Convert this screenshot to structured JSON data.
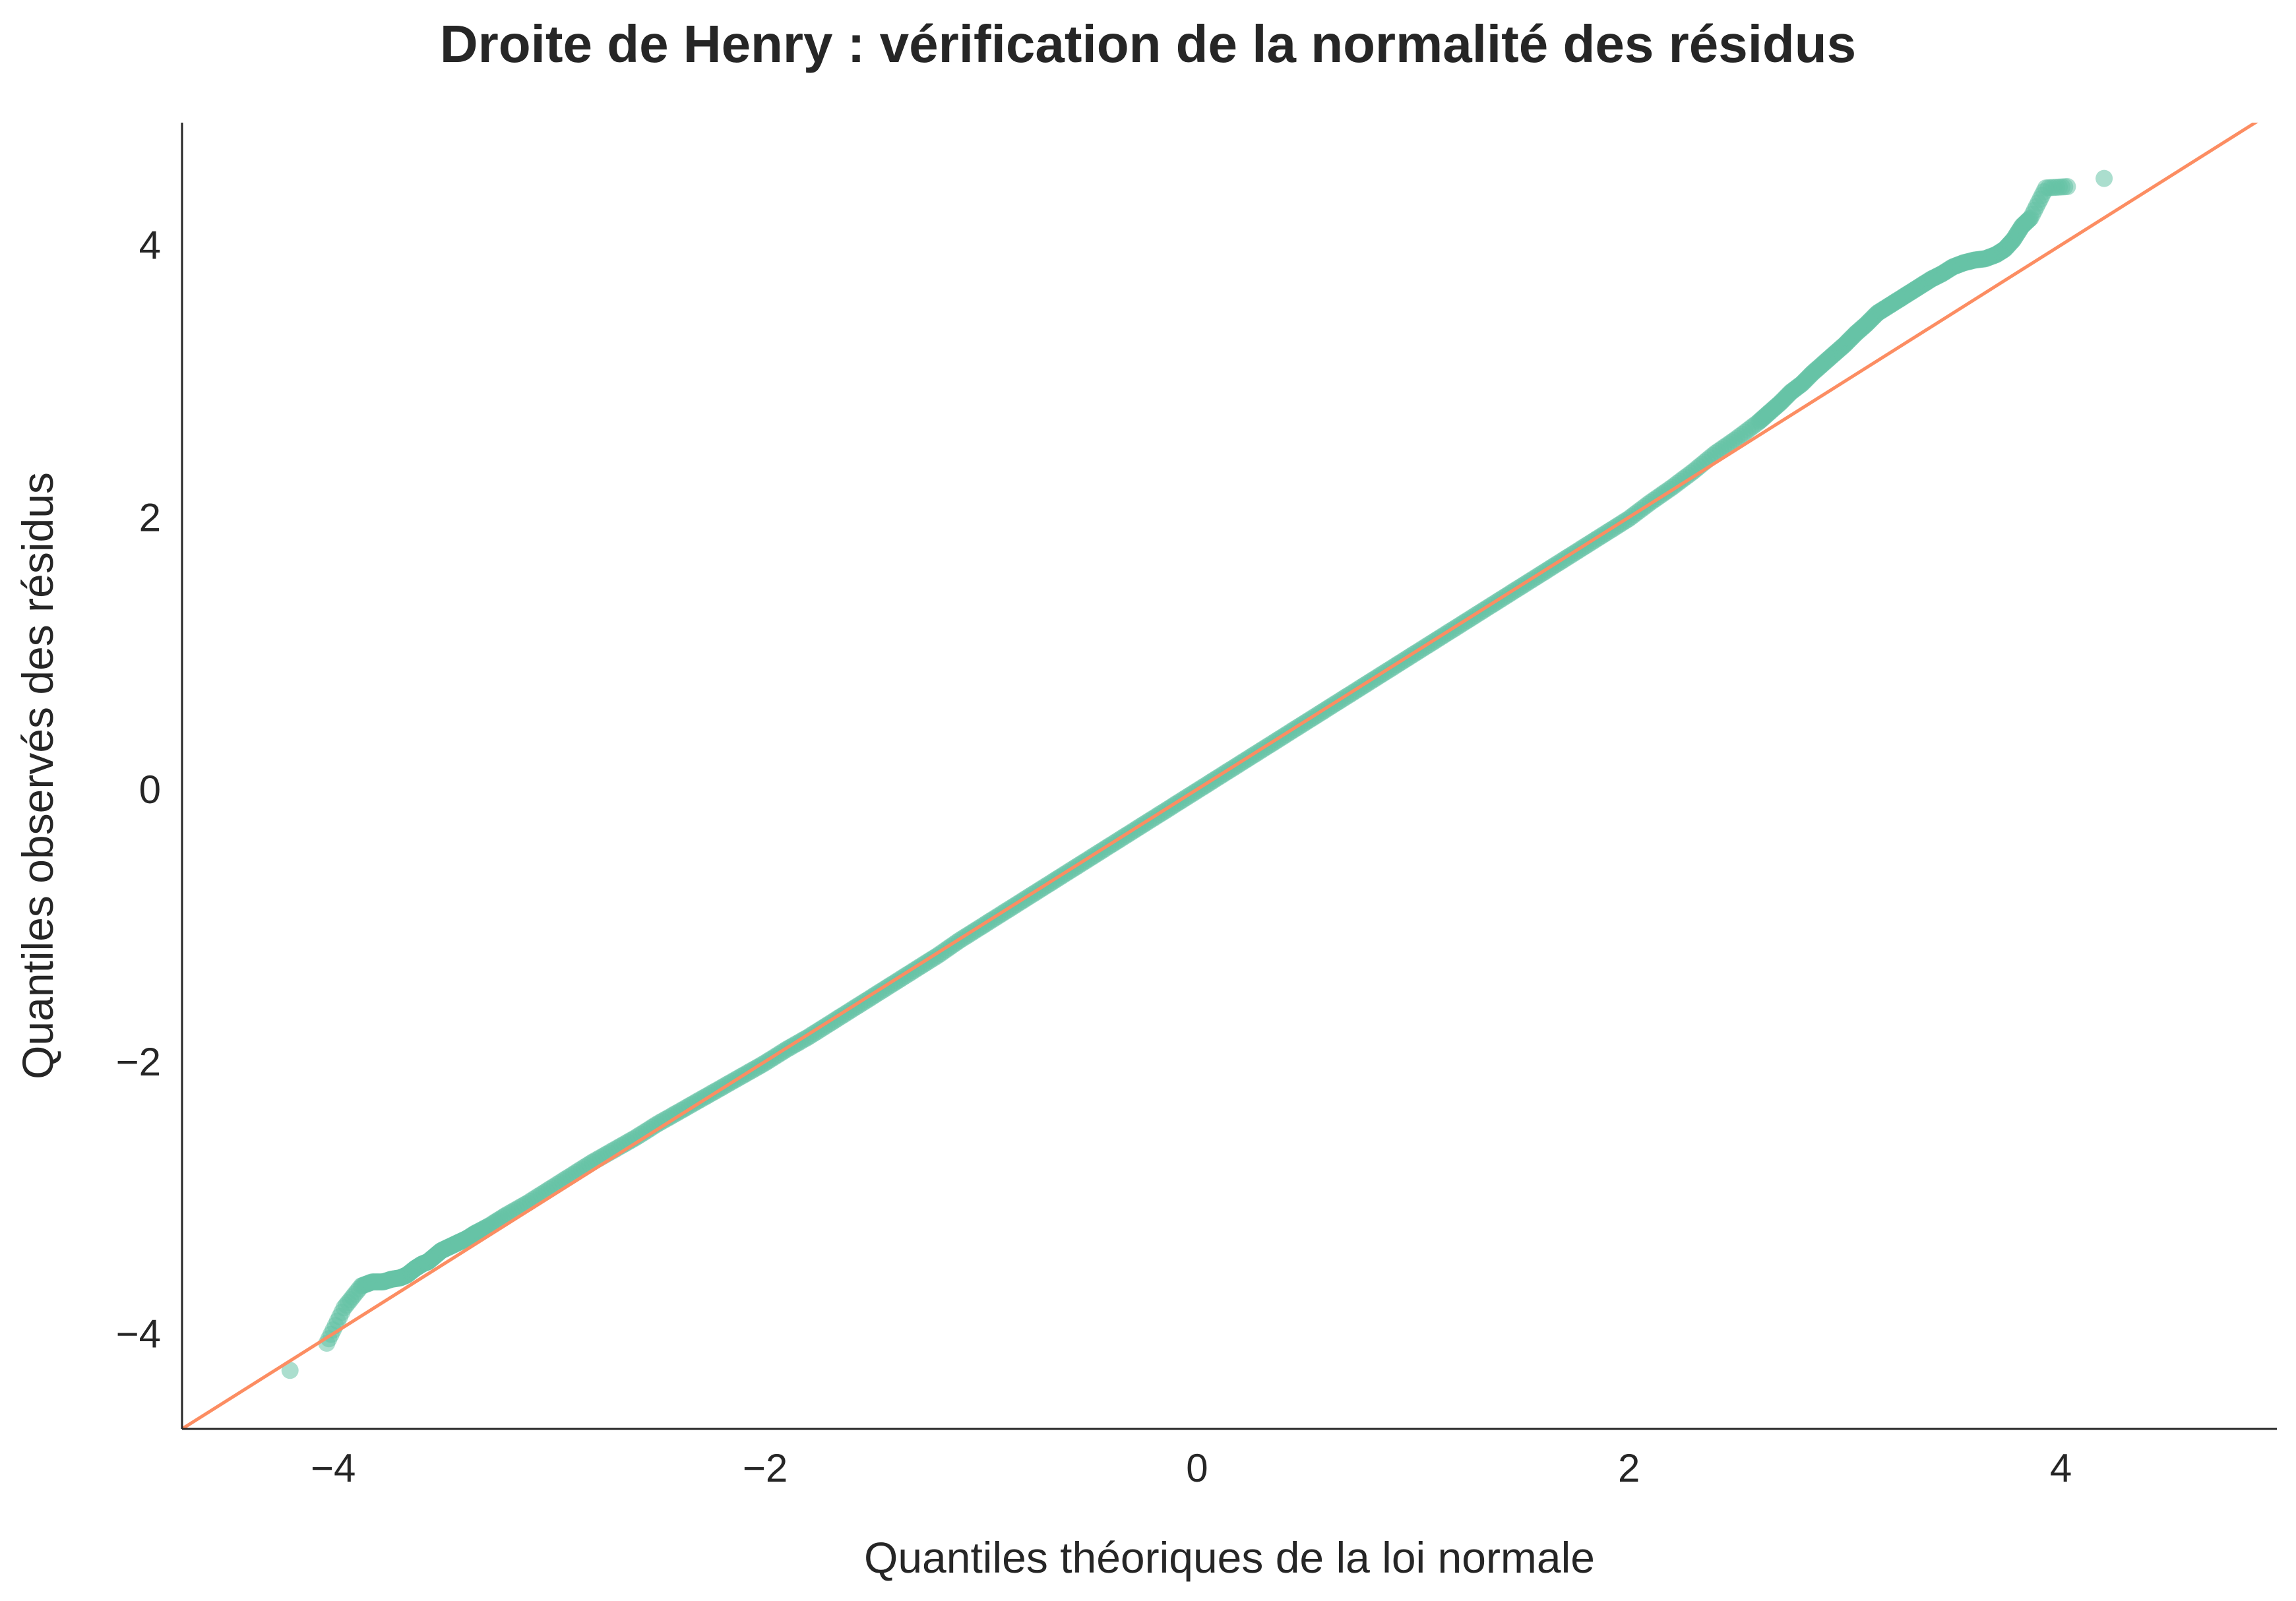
{
  "chart_data": {
    "type": "scatter",
    "title": "Droite de Henry : vérification de la normalité des résidus",
    "xlabel": "Quantiles théoriques de la loi normale",
    "ylabel": "Quantiles observés des résidus",
    "xlim": [
      -4.7,
      5.0
    ],
    "ylim": [
      -4.7,
      4.9
    ],
    "xticks": [
      -4,
      -2,
      0,
      2,
      4
    ],
    "yticks": [
      -4,
      -2,
      0,
      2,
      4
    ],
    "xtick_labels": [
      "−4",
      "−2",
      "0",
      "2",
      "4"
    ],
    "ytick_labels": [
      "−4",
      "−2",
      "0",
      "2",
      "4"
    ],
    "grid": false,
    "series": [
      {
        "kind": "points",
        "color": "#66c2a5",
        "opacity": 0.55,
        "points": [
          [
            -4.2,
            -4.27
          ],
          [
            -4.03,
            -4.07
          ],
          [
            -3.95,
            -3.81
          ],
          [
            -3.87,
            -3.65
          ],
          [
            -3.82,
            -3.62
          ],
          [
            -3.77,
            -3.62
          ],
          [
            -3.73,
            -3.6
          ],
          [
            -3.69,
            -3.59
          ],
          [
            -3.66,
            -3.57
          ],
          [
            -3.62,
            -3.52
          ],
          [
            -3.59,
            -3.49
          ],
          [
            -3.56,
            -3.47
          ],
          [
            -3.53,
            -3.43
          ],
          [
            -3.5,
            -3.39
          ],
          [
            -3.46,
            -3.36
          ],
          [
            -3.42,
            -3.33
          ],
          [
            -3.38,
            -3.3
          ],
          [
            -3.34,
            -3.26
          ],
          [
            -3.28,
            -3.21
          ],
          [
            -3.2,
            -3.13
          ],
          [
            -3.1,
            -3.04
          ],
          [
            -3.0,
            -2.94
          ],
          [
            -2.9,
            -2.84
          ],
          [
            -2.8,
            -2.74
          ],
          [
            -2.7,
            -2.65
          ],
          [
            -2.6,
            -2.56
          ],
          [
            -2.5,
            -2.46
          ],
          [
            -2.4,
            -2.37
          ],
          [
            -2.3,
            -2.28
          ],
          [
            -2.2,
            -2.19
          ],
          [
            -2.1,
            -2.1
          ],
          [
            -2.0,
            -2.01
          ],
          [
            -1.9,
            -1.91
          ],
          [
            -1.8,
            -1.82
          ],
          [
            -1.7,
            -1.72
          ],
          [
            -1.6,
            -1.62
          ],
          [
            -1.5,
            -1.52
          ],
          [
            -1.4,
            -1.42
          ],
          [
            -1.3,
            -1.32
          ],
          [
            -1.2,
            -1.22
          ],
          [
            -1.1,
            -1.11
          ],
          [
            -1.0,
            -1.01
          ],
          [
            -0.9,
            -0.91
          ],
          [
            -0.8,
            -0.81
          ],
          [
            -0.7,
            -0.71
          ],
          [
            -0.6,
            -0.61
          ],
          [
            -0.5,
            -0.51
          ],
          [
            -0.4,
            -0.41
          ],
          [
            -0.3,
            -0.31
          ],
          [
            -0.2,
            -0.21
          ],
          [
            -0.1,
            -0.11
          ],
          [
            0.0,
            -0.01
          ],
          [
            0.1,
            0.09
          ],
          [
            0.2,
            0.19
          ],
          [
            0.3,
            0.29
          ],
          [
            0.4,
            0.39
          ],
          [
            0.5,
            0.49
          ],
          [
            0.6,
            0.59
          ],
          [
            0.7,
            0.69
          ],
          [
            0.8,
            0.79
          ],
          [
            0.9,
            0.89
          ],
          [
            1.0,
            0.99
          ],
          [
            1.1,
            1.09
          ],
          [
            1.2,
            1.19
          ],
          [
            1.3,
            1.29
          ],
          [
            1.4,
            1.39
          ],
          [
            1.5,
            1.49
          ],
          [
            1.6,
            1.59
          ],
          [
            1.7,
            1.69
          ],
          [
            1.8,
            1.79
          ],
          [
            1.9,
            1.89
          ],
          [
            2.0,
            1.99
          ],
          [
            2.1,
            2.11
          ],
          [
            2.2,
            2.22
          ],
          [
            2.3,
            2.34
          ],
          [
            2.4,
            2.47
          ],
          [
            2.5,
            2.58
          ],
          [
            2.6,
            2.7
          ],
          [
            2.65,
            2.77
          ],
          [
            2.7,
            2.84
          ],
          [
            2.75,
            2.92
          ],
          [
            2.8,
            2.98
          ],
          [
            2.85,
            3.06
          ],
          [
            2.9,
            3.13
          ],
          [
            2.95,
            3.2
          ],
          [
            3.0,
            3.27
          ],
          [
            3.05,
            3.35
          ],
          [
            3.1,
            3.42
          ],
          [
            3.15,
            3.5
          ],
          [
            3.2,
            3.55
          ],
          [
            3.25,
            3.6
          ],
          [
            3.3,
            3.65
          ],
          [
            3.35,
            3.7
          ],
          [
            3.4,
            3.75
          ],
          [
            3.45,
            3.79
          ],
          [
            3.5,
            3.84
          ],
          [
            3.55,
            3.87
          ],
          [
            3.6,
            3.89
          ],
          [
            3.65,
            3.9
          ],
          [
            3.7,
            3.93
          ],
          [
            3.74,
            3.97
          ],
          [
            3.78,
            4.04
          ],
          [
            3.82,
            4.14
          ],
          [
            3.86,
            4.2
          ],
          [
            3.93,
            4.42
          ],
          [
            4.03,
            4.43
          ],
          [
            4.2,
            4.49
          ]
        ]
      },
      {
        "kind": "line",
        "color": "#fc8d62",
        "points": [
          [
            -4.7,
            -4.7
          ],
          [
            5.0,
            5.0
          ]
        ]
      }
    ]
  }
}
